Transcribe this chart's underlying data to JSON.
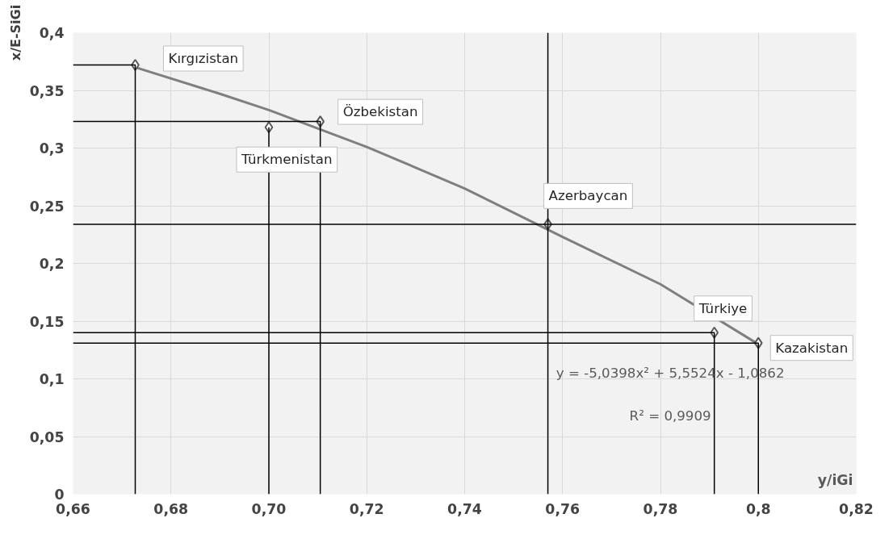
{
  "chart_data": {
    "type": "scatter",
    "xlabel": "y/iGi",
    "ylabel": "x/E-SiGi",
    "xlim": [
      0.66,
      0.82
    ],
    "ylim": [
      0,
      0.4
    ],
    "xticks": [
      {
        "value": 0.66,
        "label": "0,66"
      },
      {
        "value": 0.68,
        "label": "0,68"
      },
      {
        "value": 0.7,
        "label": "0,70"
      },
      {
        "value": 0.72,
        "label": "0,72"
      },
      {
        "value": 0.74,
        "label": "0,74"
      },
      {
        "value": 0.76,
        "label": "0,76"
      },
      {
        "value": 0.78,
        "label": "0,78"
      },
      {
        "value": 0.8,
        "label": "0,8"
      },
      {
        "value": 0.82,
        "label": "0,82"
      }
    ],
    "yticks": [
      0,
      {
        "value": 0.05,
        "label": "0,05"
      },
      {
        "value": 0.1,
        "label": "0,1"
      },
      {
        "value": 0.15,
        "label": "0,15"
      },
      {
        "value": 0.2,
        "label": "0,2"
      },
      {
        "value": 0.25,
        "label": "0,25"
      },
      {
        "value": 0.3,
        "label": "0,3"
      },
      {
        "value": 0.35,
        "label": "0,35"
      },
      {
        "value": 0.4,
        "label": "0,4"
      }
    ],
    "grid": true,
    "marker": "diamond",
    "series": [
      {
        "type": "line",
        "marker": "none",
        "color": "#7f7f7f",
        "x": [
          0.6727,
          0.69,
          0.7,
          0.72,
          0.74,
          0.76,
          0.78,
          0.8
        ],
        "values": [
          0.37,
          0.347,
          0.333,
          0.301,
          0.265,
          0.223,
          0.182,
          0.13
        ]
      },
      {
        "color": "#595959",
        "x": [
          0.6727,
          0.7,
          0.7105,
          0.757,
          0.791,
          0.8
        ],
        "values": [
          0.372,
          0.318,
          0.323,
          0.234,
          0.14,
          0.131
        ]
      },
      {
        "type": "line",
        "marker": "none",
        "color": "#000000",
        "x": [
          0.66,
          0.6727,
          0.6727
        ],
        "values": [
          0.372,
          0.372,
          0
        ]
      },
      {
        "type": "line",
        "marker": "none",
        "color": "#000000",
        "x": [
          0.66,
          0.7105,
          0.7105
        ],
        "values": [
          0.323,
          0.323,
          0
        ]
      },
      {
        "type": "line",
        "marker": "none",
        "color": "#000000",
        "x": [
          0.7,
          0.7
        ],
        "values": [
          0.318,
          0
        ]
      },
      {
        "type": "line",
        "marker": "none",
        "color": "#000000",
        "x": [
          0.66,
          0.791,
          0.791
        ],
        "values": [
          0.14,
          0.14,
          0
        ]
      },
      {
        "type": "line",
        "marker": "none",
        "color": "#000000",
        "x": [
          0.66,
          0.8,
          0.8
        ],
        "values": [
          0.131,
          0.131,
          0
        ]
      }
    ],
    "ref_lines": [
      {
        "axis": "x",
        "value": 0.757,
        "color": "#000000"
      },
      {
        "axis": "y",
        "value": 0.234,
        "color": "#000000"
      }
    ],
    "annotations": [
      {
        "text": "Kırgızistan",
        "x": 0.6727,
        "y": 0.372
      },
      {
        "text": "Türkmenistan",
        "x": 0.7,
        "y": 0.318
      },
      {
        "text": "Özbekistan",
        "x": 0.7105,
        "y": 0.323
      },
      {
        "text": "Azerbaycan",
        "x": 0.757,
        "y": 0.234
      },
      {
        "text": "Türkiye",
        "x": 0.791,
        "y": 0.14
      },
      {
        "text": "Kazakistan",
        "x": 0.8,
        "y": 0.131
      },
      "y = -5,0398x² + 5,5524x - 1,0862",
      "R² = 0,9909"
    ]
  }
}
